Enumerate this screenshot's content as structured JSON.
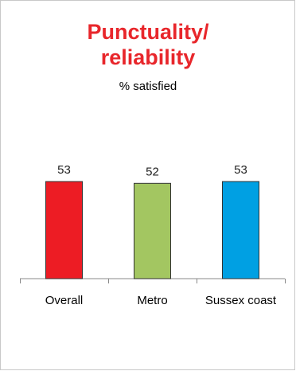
{
  "chart_data": {
    "type": "bar",
    "title": "Punctuality/ reliability",
    "title_lines": [
      "Punctuality/",
      "reliability"
    ],
    "subtitle": "% satisfied",
    "categories": [
      "Overall",
      "Metro",
      "Sussex coast"
    ],
    "values": [
      53,
      52,
      53
    ],
    "colors": [
      "#ed1c24",
      "#a3c661",
      "#00a0e3"
    ],
    "ylim": [
      0,
      100
    ],
    "grid": false,
    "legend": "none"
  }
}
